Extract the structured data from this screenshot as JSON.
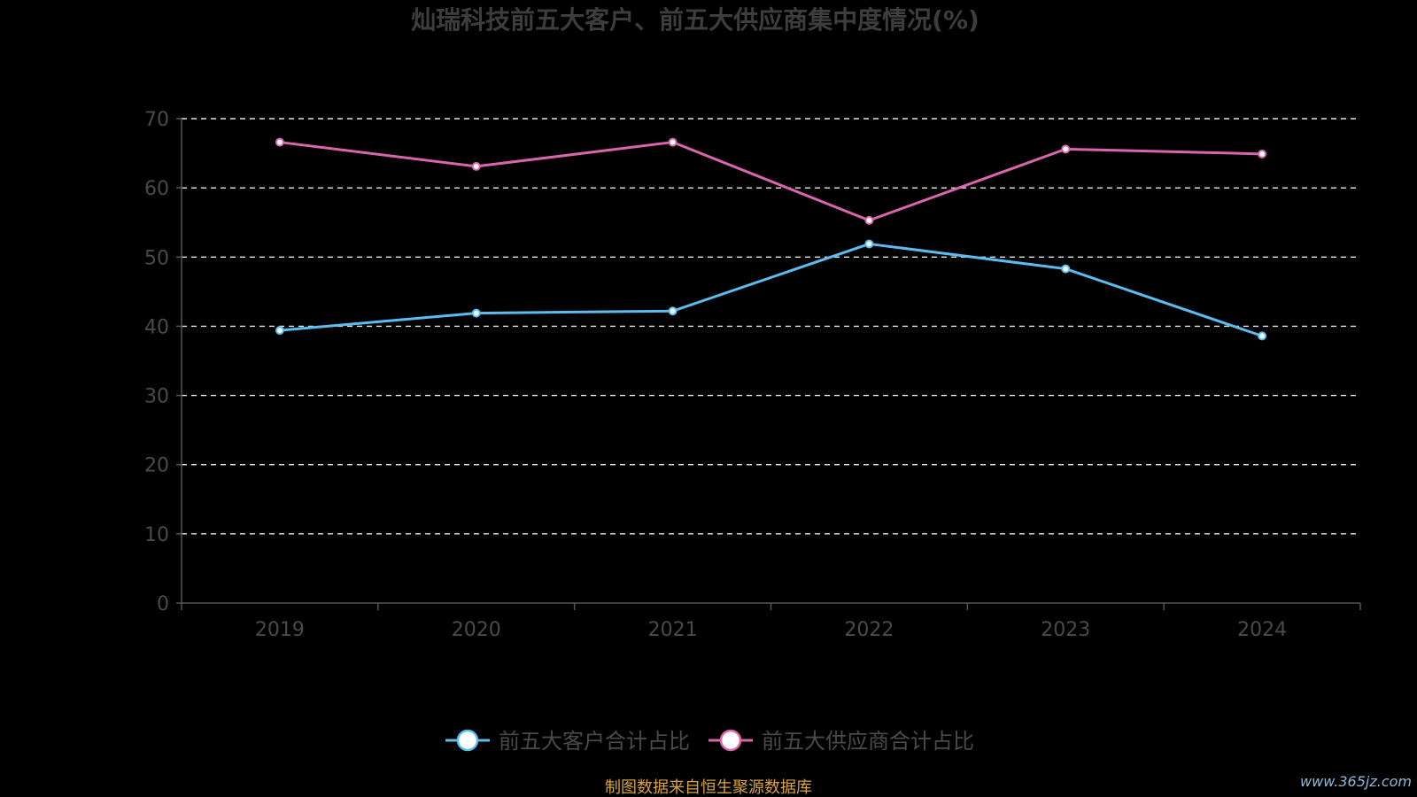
{
  "chart_data": {
    "type": "line",
    "title": "灿瑞科技前五大客户、前五大供应商集中度情况(%)",
    "categories": [
      "2019",
      "2020",
      "2021",
      "2022",
      "2023",
      "2024"
    ],
    "ylim": [
      0,
      70
    ],
    "yticks": [
      0,
      10,
      20,
      30,
      40,
      50,
      60,
      70
    ],
    "grid": true,
    "legend_position": "bottom",
    "series": [
      {
        "name": "前五大客户合计占比",
        "color": "#5bbcf0",
        "values": [
          39.4,
          41.9,
          42.2,
          51.9,
          48.3,
          38.6
        ]
      },
      {
        "name": "前五大供应商合计占比",
        "color": "#d966aa",
        "values": [
          66.6,
          63.1,
          66.6,
          55.3,
          65.6,
          64.9
        ]
      }
    ]
  },
  "footer": {
    "source": "制图数据来自恒生聚源数据库",
    "watermark": "www.365jz.com"
  }
}
